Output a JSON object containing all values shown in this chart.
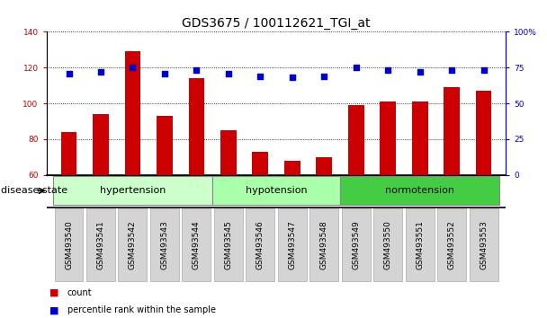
{
  "title": "GDS3675 / 100112621_TGI_at",
  "samples": [
    "GSM493540",
    "GSM493541",
    "GSM493542",
    "GSM493543",
    "GSM493544",
    "GSM493545",
    "GSM493546",
    "GSM493547",
    "GSM493548",
    "GSM493549",
    "GSM493550",
    "GSM493551",
    "GSM493552",
    "GSM493553"
  ],
  "count_values": [
    84,
    94,
    129,
    93,
    114,
    85,
    73,
    68,
    70,
    99,
    101,
    101,
    109,
    107
  ],
  "percentile_values": [
    71,
    72,
    75,
    71,
    73,
    71,
    69,
    68,
    69,
    75,
    73,
    72,
    73,
    73
  ],
  "bar_color": "#cc0000",
  "dot_color": "#0000cc",
  "ylim_left": [
    60,
    140
  ],
  "ylim_right": [
    0,
    100
  ],
  "yticks_left": [
    60,
    80,
    100,
    120,
    140
  ],
  "yticks_right": [
    0,
    25,
    50,
    75,
    100
  ],
  "ytick_labels_right": [
    "0",
    "25",
    "50",
    "75",
    "100%"
  ],
  "group_defs": [
    {
      "label": "hypertension",
      "start": 0,
      "end": 4,
      "color": "#ccffcc"
    },
    {
      "label": "hypotension",
      "start": 5,
      "end": 8,
      "color": "#aaffaa"
    },
    {
      "label": "normotension",
      "start": 9,
      "end": 13,
      "color": "#44cc44"
    }
  ],
  "disease_state_label": "disease state",
  "legend_count_label": "count",
  "legend_pct_label": "percentile rank within the sample",
  "background_color": "#ffffff",
  "title_fontsize": 10,
  "tick_fontsize": 6.5,
  "label_fontsize": 8,
  "bar_width": 0.5
}
